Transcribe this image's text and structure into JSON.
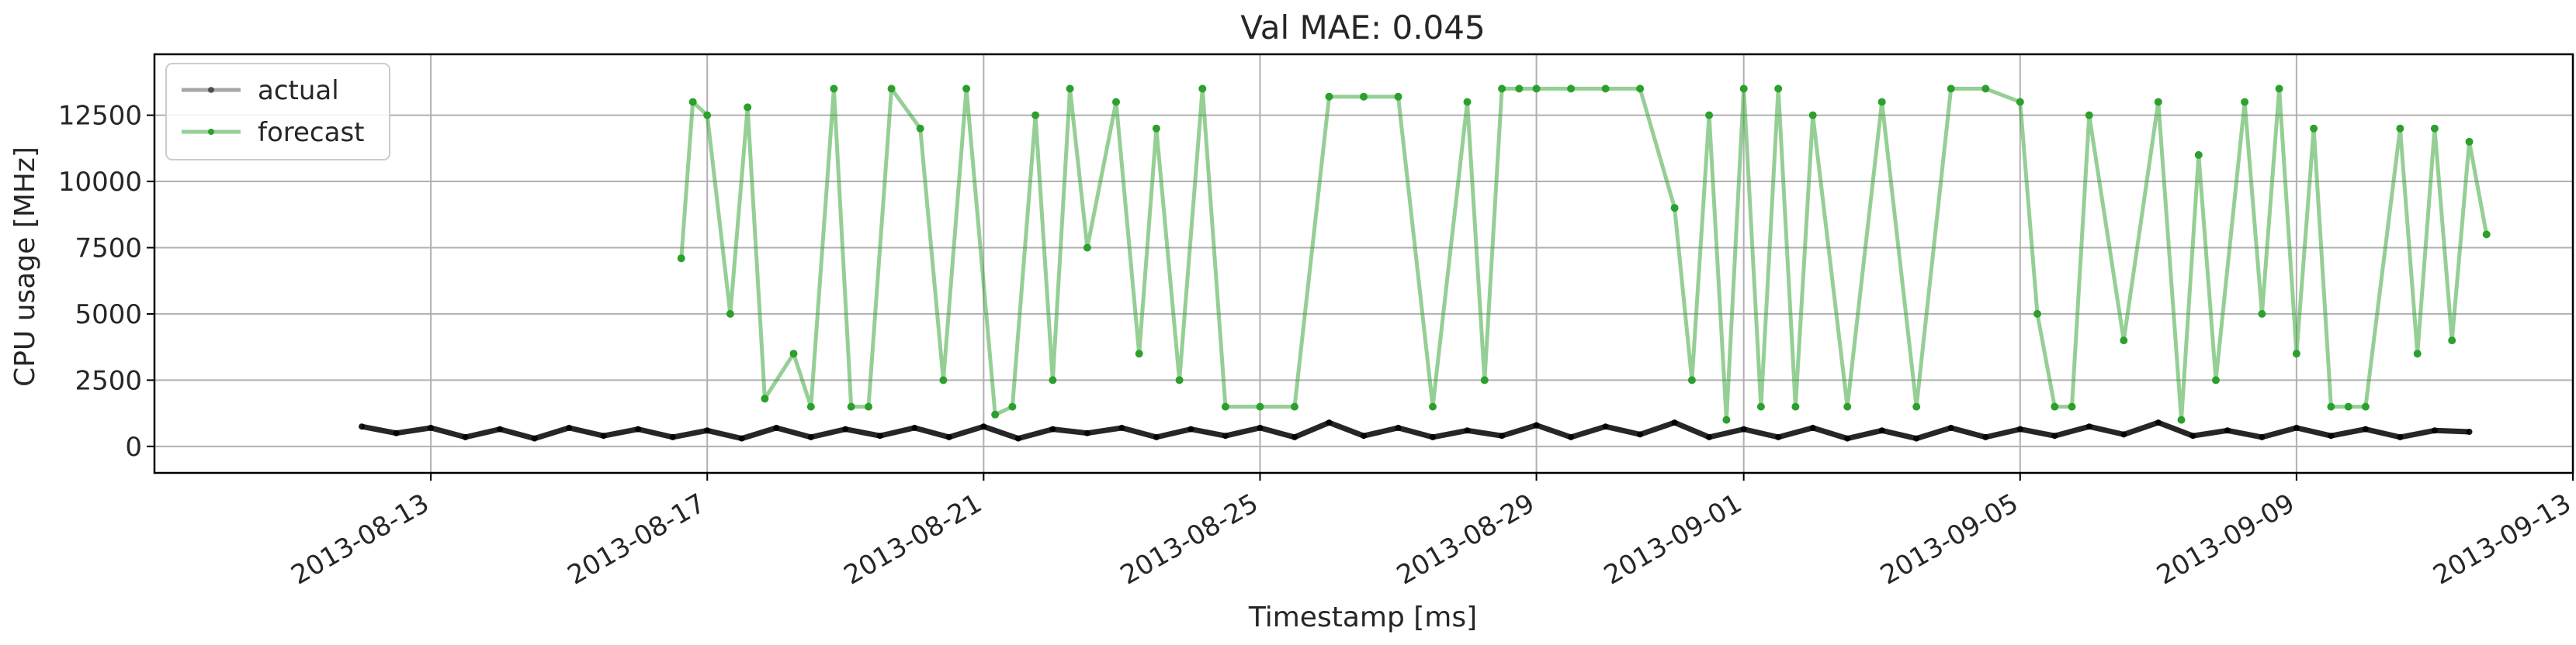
{
  "chart_data": {
    "type": "line",
    "title": "Val MAE: 0.045",
    "xlabel": "Timestamp [ms]",
    "ylabel": "CPU usage [MHz]",
    "xlim": [
      "2013-08-09",
      "2013-09-13"
    ],
    "ylim": [
      -1000,
      14800
    ],
    "grid": true,
    "legend_position": "top-left",
    "x_ticks": [
      "2013-08-13",
      "2013-08-17",
      "2013-08-21",
      "2013-08-25",
      "2013-08-29",
      "2013-09-01",
      "2013-09-05",
      "2013-09-09",
      "2013-09-13"
    ],
    "y_ticks": [
      0,
      2500,
      5000,
      7500,
      10000,
      12500
    ],
    "y_tick_labels": [
      "0",
      "2500",
      "5000",
      "7500",
      "10000",
      "12500"
    ],
    "series": [
      {
        "name": "actual",
        "color": "#000000",
        "x": [
          "2013-08-12",
          "2013-08-12T12:00",
          "2013-08-13",
          "2013-08-13T12:00",
          "2013-08-14",
          "2013-08-14T12:00",
          "2013-08-15",
          "2013-08-15T12:00",
          "2013-08-16",
          "2013-08-16T12:00",
          "2013-08-17",
          "2013-08-17T12:00",
          "2013-08-18",
          "2013-08-18T12:00",
          "2013-08-19",
          "2013-08-19T12:00",
          "2013-08-20",
          "2013-08-20T12:00",
          "2013-08-21",
          "2013-08-21T12:00",
          "2013-08-22",
          "2013-08-22T12:00",
          "2013-08-23",
          "2013-08-23T12:00",
          "2013-08-24",
          "2013-08-24T12:00",
          "2013-08-25",
          "2013-08-25T12:00",
          "2013-08-26",
          "2013-08-26T12:00",
          "2013-08-27",
          "2013-08-27T12:00",
          "2013-08-28",
          "2013-08-28T12:00",
          "2013-08-29",
          "2013-08-29T12:00",
          "2013-08-30",
          "2013-08-30T12:00",
          "2013-08-31",
          "2013-08-31T12:00",
          "2013-09-01",
          "2013-09-01T12:00",
          "2013-09-02",
          "2013-09-02T12:00",
          "2013-09-03",
          "2013-09-03T12:00",
          "2013-09-04",
          "2013-09-04T12:00",
          "2013-09-05",
          "2013-09-05T12:00",
          "2013-09-06",
          "2013-09-06T12:00",
          "2013-09-07",
          "2013-09-07T12:00",
          "2013-09-08",
          "2013-09-08T12:00",
          "2013-09-09",
          "2013-09-09T12:00",
          "2013-09-10",
          "2013-09-10T12:00",
          "2013-09-11",
          "2013-09-11T12:00"
        ],
        "values": [
          750,
          500,
          700,
          350,
          650,
          300,
          700,
          400,
          650,
          350,
          600,
          300,
          700,
          350,
          650,
          400,
          700,
          350,
          750,
          300,
          650,
          500,
          700,
          350,
          650,
          400,
          700,
          350,
          900,
          400,
          700,
          350,
          600,
          400,
          800,
          350,
          750,
          450,
          900,
          350,
          650,
          350,
          700,
          300,
          600,
          300,
          700,
          350,
          650,
          400,
          750,
          450,
          900,
          400,
          600,
          350,
          700,
          400,
          650,
          350,
          600,
          550
        ]
      },
      {
        "name": "forecast",
        "color": "#2ca02c",
        "x": [
          "2013-08-16T15:00",
          "2013-08-16T19:00",
          "2013-08-17",
          "2013-08-17T08:00",
          "2013-08-17T14:00",
          "2013-08-17T20:00",
          "2013-08-18T06:00",
          "2013-08-18T12:00",
          "2013-08-18T20:00",
          "2013-08-19T02:00",
          "2013-08-19T08:00",
          "2013-08-19T16:00",
          "2013-08-20T02:00",
          "2013-08-20T10:00",
          "2013-08-20T18:00",
          "2013-08-21T04:00",
          "2013-08-21T10:00",
          "2013-08-21T18:00",
          "2013-08-22",
          "2013-08-22T06:00",
          "2013-08-22T12:00",
          "2013-08-22T22:00",
          "2013-08-23T06:00",
          "2013-08-23T12:00",
          "2013-08-23T20:00",
          "2013-08-24T04:00",
          "2013-08-24T12:00",
          "2013-08-25",
          "2013-08-25T12:00",
          "2013-08-26",
          "2013-08-26T12:00",
          "2013-08-27",
          "2013-08-27T12:00",
          "2013-08-28",
          "2013-08-28T06:00",
          "2013-08-28T12:00",
          "2013-08-28T18:00",
          "2013-08-29",
          "2013-08-29T12:00",
          "2013-08-30",
          "2013-08-30T12:00",
          "2013-08-31",
          "2013-08-31T06:00",
          "2013-08-31T12:00",
          "2013-08-31T18:00",
          "2013-09-01",
          "2013-09-01T06:00",
          "2013-09-01T12:00",
          "2013-09-01T18:00",
          "2013-09-02",
          "2013-09-02T12:00",
          "2013-09-03",
          "2013-09-03T12:00",
          "2013-09-04",
          "2013-09-04T12:00",
          "2013-09-05",
          "2013-09-05T06:00",
          "2013-09-05T12:00",
          "2013-09-05T18:00",
          "2013-09-06",
          "2013-09-06T12:00",
          "2013-09-07",
          "2013-09-07T08:00",
          "2013-09-07T14:00",
          "2013-09-07T20:00",
          "2013-09-08T06:00",
          "2013-09-08T12:00",
          "2013-09-08T18:00",
          "2013-09-09",
          "2013-09-09T06:00",
          "2013-09-09T12:00",
          "2013-09-09T18:00",
          "2013-09-10",
          "2013-09-10T12:00",
          "2013-09-10T18:00",
          "2013-09-11",
          "2013-09-11T06:00",
          "2013-09-11T12:00",
          "2013-09-11T18:00"
        ],
        "values": [
          7100,
          13000,
          12500,
          5000,
          12800,
          1800,
          3500,
          1500,
          13500,
          1500,
          1500,
          13500,
          12000,
          2500,
          13500,
          1200,
          1500,
          12500,
          2500,
          13500,
          7500,
          13000,
          3500,
          12000,
          2500,
          13500,
          1500,
          1500,
          1500,
          13200,
          13200,
          13200,
          1500,
          13000,
          2500,
          13500,
          13500,
          13500,
          13500,
          13500,
          13500,
          9000,
          2500,
          12500,
          1000,
          13500,
          1500,
          13500,
          1500,
          12500,
          1500,
          13000,
          1500,
          13500,
          13500,
          13000,
          5000,
          1500,
          1500,
          12500,
          4000,
          13000,
          1000,
          11000,
          2500,
          13000,
          5000,
          13500,
          3500,
          12000,
          1500,
          1500,
          1500,
          12000,
          3500,
          12000,
          4000,
          11500,
          8000
        ]
      }
    ]
  }
}
